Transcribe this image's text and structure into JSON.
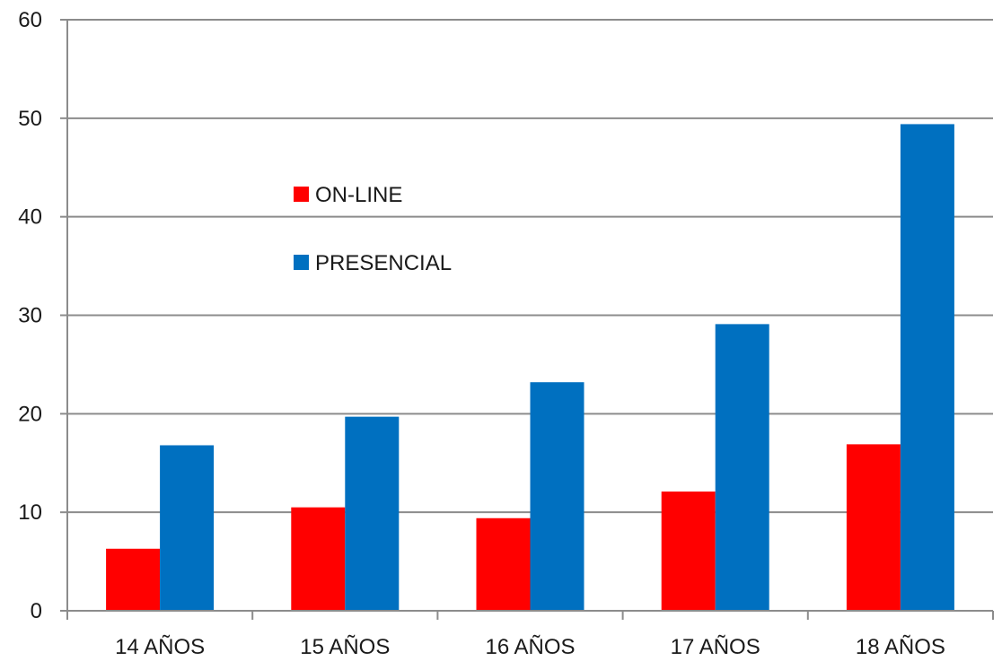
{
  "chart_data": {
    "type": "bar",
    "categories": [
      "14 AÑOS",
      "15 AÑOS",
      "16 AÑOS",
      "17 AÑOS",
      "18 AÑOS"
    ],
    "series": [
      {
        "name": "ON-LINE",
        "color": "#ff0000",
        "values": [
          6.3,
          10.5,
          9.4,
          12.1,
          16.9
        ]
      },
      {
        "name": "PRESENCIAL",
        "color": "#0070c0",
        "values": [
          16.8,
          19.7,
          23.2,
          29.1,
          49.4
        ]
      }
    ],
    "yticks": [
      "0",
      "10",
      "20",
      "30",
      "40",
      "50",
      "60"
    ],
    "ylim": [
      0,
      60
    ],
    "grid": true,
    "legend_position": "inside, upper-left of center"
  }
}
